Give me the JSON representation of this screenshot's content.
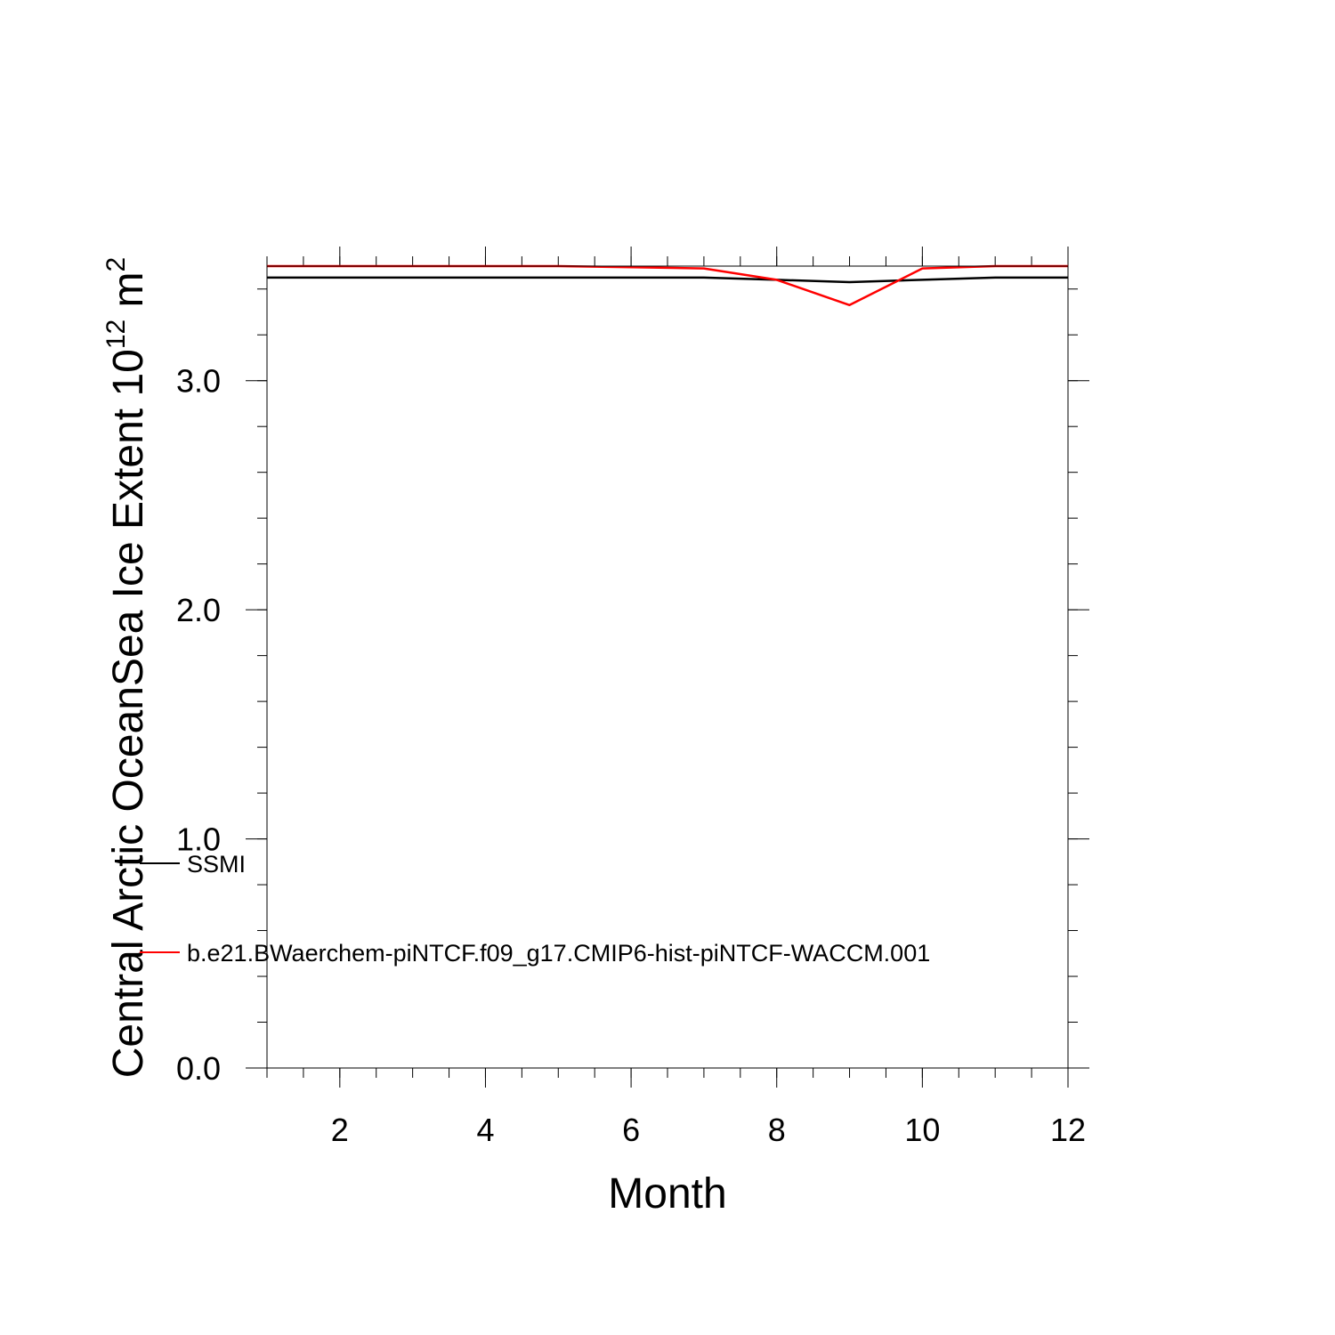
{
  "chart_data": {
    "type": "line",
    "title": "",
    "xlabel": "Month",
    "ylabel": {
      "prefix": "Central Arctic OceanSea Ice Extent 10",
      "exp1": "12",
      "unit": " m",
      "exp2": "2"
    },
    "xlim": [
      1,
      12
    ],
    "ylim": [
      0,
      3.5
    ],
    "x_ticks": [
      2,
      4,
      6,
      8,
      10,
      12
    ],
    "x_tick_labels": [
      "2",
      "4",
      "6",
      "8",
      "10",
      "12"
    ],
    "y_ticks": [
      0,
      1,
      2,
      3
    ],
    "y_tick_labels": [
      "0.0",
      "1.0",
      "2.0",
      "3.0"
    ],
    "x_minor_step": 0.5,
    "y_minor_step": 0.2,
    "grid": false,
    "legend_position": "lower-left",
    "x": [
      1,
      2,
      3,
      4,
      5,
      6,
      7,
      8,
      9,
      10,
      11,
      12
    ],
    "series": [
      {
        "name": "SSMI",
        "color": "#000000",
        "values": [
          3.45,
          3.45,
          3.45,
          3.45,
          3.45,
          3.45,
          3.45,
          3.44,
          3.43,
          3.44,
          3.45,
          3.45
        ]
      },
      {
        "name": "b.e21.BWaerchem-piNTCF.f09_g17.CMIP6-hist-piNTCF-WACCM.001",
        "color": "#ff0000",
        "values": [
          3.5,
          3.5,
          3.5,
          3.5,
          3.5,
          3.495,
          3.49,
          3.44,
          3.33,
          3.49,
          3.5,
          3.5
        ]
      }
    ]
  }
}
